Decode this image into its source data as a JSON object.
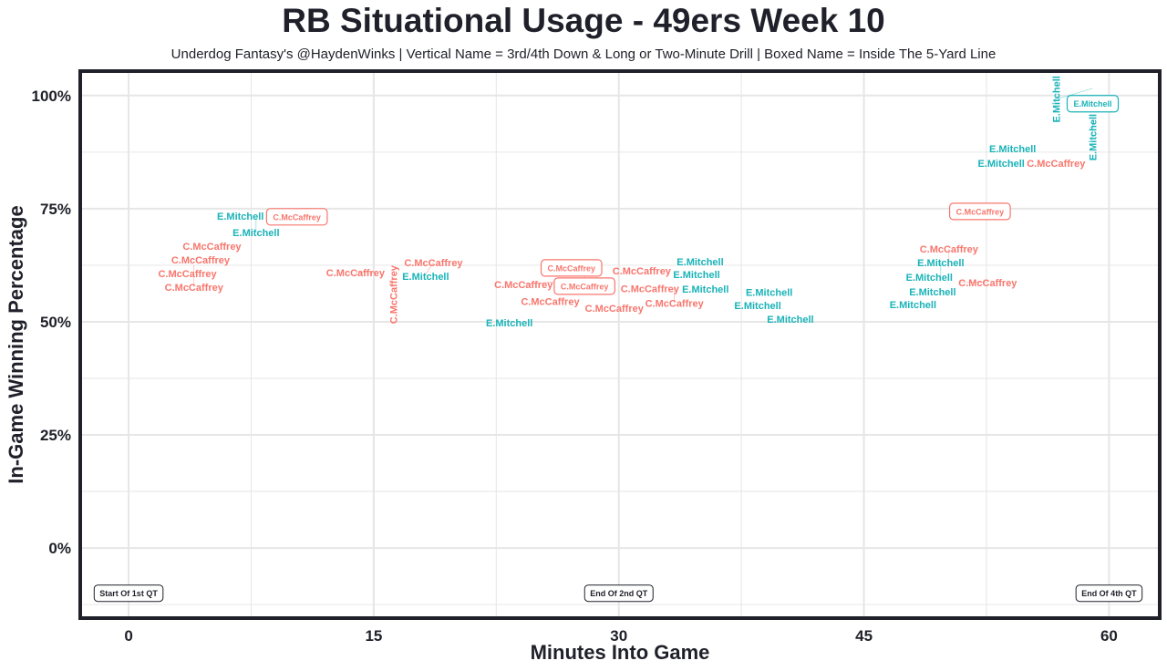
{
  "chart_data": {
    "type": "scatter",
    "title": "RB Situational Usage - 49ers Week 10",
    "subtitle": "Underdog Fantasy's @HaydenWinks | Vertical Name = 3rd/4th Down & Long or Two-Minute Drill | Boxed Name = Inside The 5-Yard Line",
    "xlabel": "Minutes Into Game",
    "ylabel": "In-Game Winning Percentage",
    "xlim": [
      -2.96,
      63.1
    ],
    "ylim": [
      -15.5,
      105.4
    ],
    "xticks": [
      0,
      15,
      30,
      45,
      60
    ],
    "xtick_labels": [
      "0",
      "15",
      "30",
      "45",
      "60"
    ],
    "yticks": [
      0,
      25,
      50,
      75,
      100
    ],
    "ytick_labels": [
      "0%",
      "25%",
      "50%",
      "75%",
      "100%"
    ],
    "grid": true,
    "colors": {
      "C.McCaffrey": "#F8766D",
      "E.Mitchell": "#19B3B8"
    },
    "points": [
      {
        "name": "E.Mitchell",
        "x": 7.4,
        "y": 73.4,
        "style": "normal"
      },
      {
        "name": "E.Mitchell",
        "x": 7.8,
        "y": 72.8,
        "style": "normal"
      },
      {
        "name": "C.McCaffrey",
        "x": 10.3,
        "y": 73.2,
        "style": "boxed"
      },
      {
        "name": "C.McCaffrey",
        "x": 5.1,
        "y": 66.7,
        "style": "normal"
      },
      {
        "name": "C.McCaffrey",
        "x": 4.4,
        "y": 64.3,
        "style": "normal"
      },
      {
        "name": "C.McCaffrey",
        "x": 3.6,
        "y": 63.1,
        "style": "normal"
      },
      {
        "name": "C.McCaffrey",
        "x": 4.0,
        "y": 62.5,
        "style": "normal"
      },
      {
        "name": "C.McCaffrey",
        "x": 15.0,
        "y": 60.9,
        "style": "normal"
      },
      {
        "name": "C.McCaffrey",
        "x": 16.2,
        "y": 56.0,
        "style": "vertical"
      },
      {
        "name": "E.Mitchell",
        "x": 17.9,
        "y": 60.1,
        "style": "normal"
      },
      {
        "name": "C.McCaffrey",
        "x": 18.1,
        "y": 60.1,
        "style": "normal"
      },
      {
        "name": "E.Mitchell",
        "x": 23.3,
        "y": 49.8,
        "style": "normal"
      },
      {
        "name": "C.McCaffrey",
        "x": 27.1,
        "y": 61.9,
        "style": "boxed"
      },
      {
        "name": "C.McCaffrey",
        "x": 27.9,
        "y": 60.9,
        "style": "boxed"
      },
      {
        "name": "C.McCaffrey",
        "x": 26.4,
        "y": 58.9,
        "style": "normal"
      },
      {
        "name": "C.McCaffrey",
        "x": 25.8,
        "y": 56.9,
        "style": "normal"
      },
      {
        "name": "C.McCaffrey",
        "x": 31.4,
        "y": 61.3,
        "style": "normal"
      },
      {
        "name": "C.McCaffrey",
        "x": 31.9,
        "y": 57.3,
        "style": "normal"
      },
      {
        "name": "C.McCaffrey",
        "x": 33.4,
        "y": 57.7,
        "style": "normal"
      },
      {
        "name": "E.Mitchell",
        "x": 34.2,
        "y": 58.7,
        "style": "normal"
      },
      {
        "name": "E.Mitchell",
        "x": 34.7,
        "y": 62.1,
        "style": "normal"
      },
      {
        "name": "E.Mitchell",
        "x": 35.3,
        "y": 59.7,
        "style": "normal"
      },
      {
        "name": "C.McCaffrey",
        "x": 30.0,
        "y": 53.0,
        "style": "normal"
      },
      {
        "name": "E.Mitchell",
        "x": 39.2,
        "y": 56.5,
        "style": "normal"
      },
      {
        "name": "E.Mitchell",
        "x": 38.5,
        "y": 54.8,
        "style": "normal"
      },
      {
        "name": "E.Mitchell",
        "x": 40.5,
        "y": 51.2,
        "style": "normal"
      },
      {
        "name": "E.Mitchell",
        "x": 48.0,
        "y": 53.8,
        "style": "normal"
      },
      {
        "name": "E.Mitchell",
        "x": 49.0,
        "y": 59.9,
        "style": "normal"
      },
      {
        "name": "E.Mitchell",
        "x": 49.7,
        "y": 60.1,
        "style": "normal"
      },
      {
        "name": "E.Mitchell",
        "x": 49.2,
        "y": 58.5,
        "style": "normal"
      },
      {
        "name": "C.McCaffrey",
        "x": 50.2,
        "y": 61.9,
        "style": "normal"
      },
      {
        "name": "C.McCaffrey",
        "x": 50.9,
        "y": 58.7,
        "style": "normal"
      },
      {
        "name": "C.McCaffrey",
        "x": 52.1,
        "y": 74.4,
        "style": "boxed"
      },
      {
        "name": "E.Mitchell",
        "x": 54.1,
        "y": 88.3,
        "style": "normal"
      },
      {
        "name": "E.Mitchell",
        "x": 53.4,
        "y": 85.7,
        "style": "normal"
      },
      {
        "name": "C.McCaffrey",
        "x": 56.2,
        "y": 86.9,
        "style": "normal"
      },
      {
        "name": "E.Mitchell",
        "x": 59.0,
        "y": 98.2,
        "style": "boxed"
      },
      {
        "name": "E.Mitchell",
        "x": 59.0,
        "y": 101.6,
        "style": "vertical"
      },
      {
        "name": "E.Mitchell",
        "x": 59.0,
        "y": 94.4,
        "style": "vertical"
      }
    ],
    "annotations": [
      {
        "text": "Start Of 1st QT",
        "x": 0,
        "y": -10
      },
      {
        "text": "End Of 2nd QT",
        "x": 30,
        "y": -10
      },
      {
        "text": "End Of 4th QT",
        "x": 60,
        "y": -10
      }
    ]
  }
}
